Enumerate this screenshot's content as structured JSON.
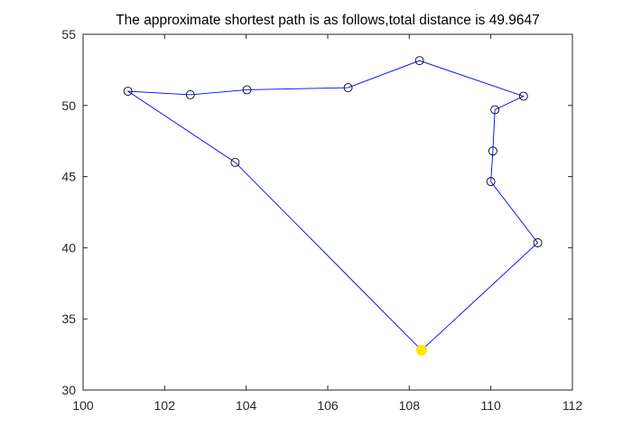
{
  "chart_data": {
    "type": "line",
    "title": "The approximate shortest path is as follows,total distance is 49.9647",
    "xlabel": "",
    "ylabel": "",
    "xlim": [
      100,
      112
    ],
    "ylim": [
      30,
      55
    ],
    "x_ticks": [
      100,
      102,
      104,
      106,
      108,
      110,
      112
    ],
    "y_ticks": [
      30,
      35,
      40,
      45,
      50,
      55
    ],
    "grid": false,
    "box": true,
    "colors": {
      "path": "#0000ff",
      "marker_edge": "#000000",
      "start": "#ffe600",
      "axis": "#262626"
    },
    "path": [
      {
        "x": 108.3,
        "y": 32.8
      },
      {
        "x": 103.73,
        "y": 46.0
      },
      {
        "x": 101.1,
        "y": 51.0
      },
      {
        "x": 102.63,
        "y": 50.75
      },
      {
        "x": 104.02,
        "y": 51.1
      },
      {
        "x": 106.5,
        "y": 51.25
      },
      {
        "x": 108.25,
        "y": 53.15
      },
      {
        "x": 110.8,
        "y": 50.65
      },
      {
        "x": 110.1,
        "y": 49.7
      },
      {
        "x": 110.05,
        "y": 46.8
      },
      {
        "x": 110.0,
        "y": 44.65
      },
      {
        "x": 111.15,
        "y": 40.35
      },
      {
        "x": 108.3,
        "y": 32.8
      }
    ],
    "start_point": {
      "x": 108.3,
      "y": 32.8
    }
  }
}
